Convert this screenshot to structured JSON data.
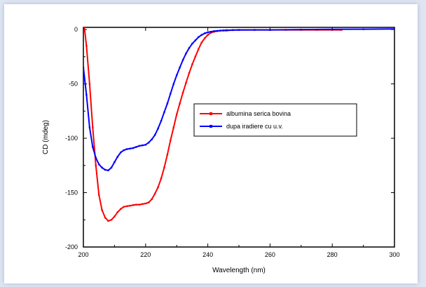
{
  "chart_data": {
    "type": "line",
    "xlabel": "Wavelength (nm)",
    "ylabel": "CD (mdeg)",
    "xlim": [
      200,
      300
    ],
    "ylim": [
      -200,
      2
    ],
    "xticks": [
      200,
      220,
      240,
      260,
      280,
      300
    ],
    "yticks": [
      0,
      -50,
      -100,
      -150,
      -200
    ],
    "grid": false,
    "legend_position": "center-right",
    "series": [
      {
        "name": "albumina serica bovina",
        "color": "#ff0000",
        "x": [
          200,
          201,
          202,
          203,
          204,
          205,
          206,
          207,
          208,
          209,
          210,
          211,
          212,
          213,
          214,
          215,
          216,
          217,
          218,
          219,
          220,
          221,
          222,
          223,
          224,
          225,
          226,
          227,
          228,
          229,
          230,
          231,
          232,
          233,
          234,
          235,
          236,
          237,
          238,
          239,
          240,
          241,
          242,
          243,
          244,
          245,
          246,
          248,
          250,
          255,
          260,
          265,
          270,
          275,
          280,
          283
        ],
        "y": [
          10,
          -15,
          -50,
          -90,
          -125,
          -152,
          -166,
          -173,
          -176,
          -175,
          -172,
          -168,
          -165,
          -163,
          -162.5,
          -162,
          -161.5,
          -161,
          -161,
          -160.5,
          -160,
          -159,
          -156,
          -151,
          -145,
          -137,
          -127,
          -115,
          -102,
          -90,
          -78,
          -68,
          -58,
          -49,
          -40,
          -32,
          -25,
          -18,
          -12,
          -8,
          -5,
          -3,
          -2,
          -1.5,
          -1,
          -1,
          -1,
          -0.5,
          -0.3,
          -0.3,
          -0.3,
          -0.3,
          -0.3,
          -0.3,
          -0.3,
          -0.3
        ]
      },
      {
        "name": "dupa iradiere cu u.v.",
        "color": "#0000ff",
        "x": [
          200,
          201,
          202,
          203,
          204,
          205,
          206,
          207,
          208,
          209,
          210,
          211,
          212,
          213,
          214,
          215,
          216,
          217,
          218,
          219,
          220,
          221,
          222,
          223,
          224,
          225,
          226,
          227,
          228,
          229,
          230,
          231,
          232,
          233,
          234,
          235,
          236,
          237,
          238,
          239,
          240,
          241,
          242,
          243,
          244,
          245,
          246,
          248,
          250,
          255,
          260,
          270,
          280,
          290,
          300
        ],
        "y": [
          -35,
          -60,
          -90,
          -108,
          -118,
          -124,
          -127,
          -129,
          -129.5,
          -127,
          -122,
          -117,
          -113,
          -111,
          -110,
          -109.5,
          -109,
          -108,
          -107,
          -106.5,
          -106,
          -104,
          -101,
          -97,
          -91,
          -84,
          -76,
          -68,
          -59,
          -50,
          -42,
          -35,
          -28,
          -22,
          -17,
          -13,
          -10,
          -7,
          -5,
          -3.5,
          -2.5,
          -2,
          -1.5,
          -1.2,
          -1,
          -0.8,
          -0.6,
          -0.5,
          -0.4,
          -0.3,
          -0.3,
          0,
          0.2,
          0.3,
          0.5
        ]
      }
    ]
  }
}
